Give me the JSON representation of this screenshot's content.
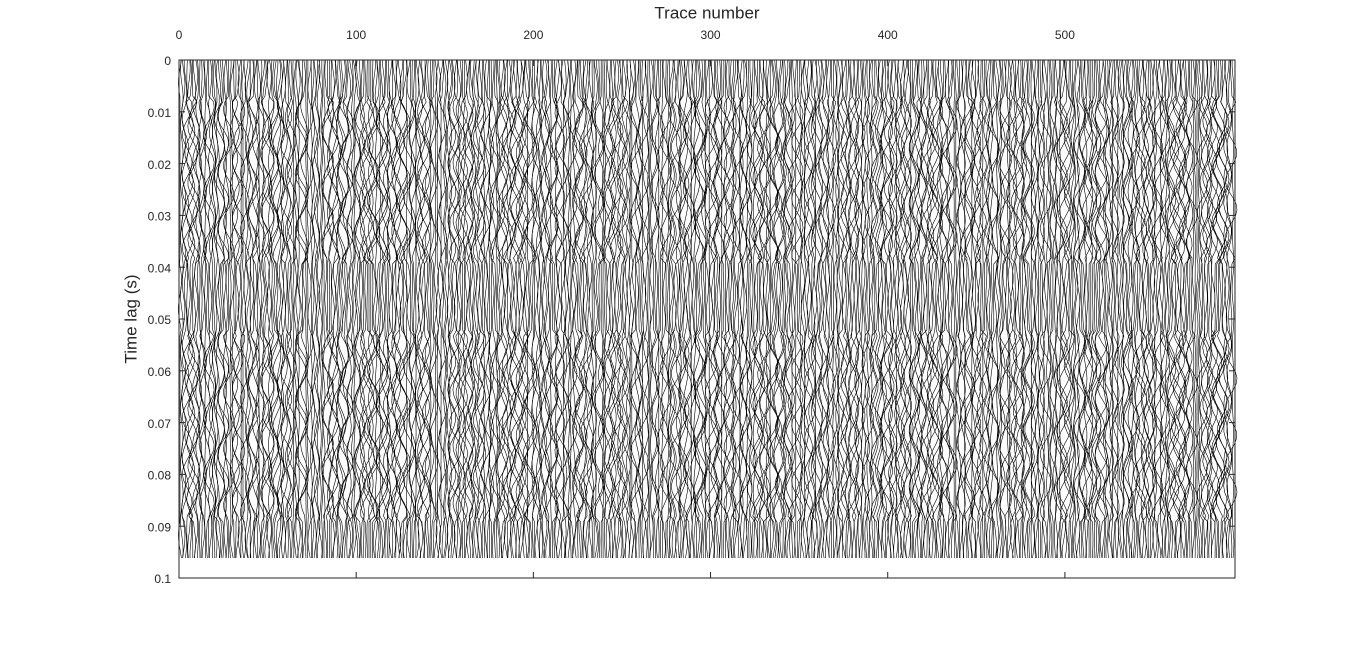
{
  "chart_data": {
    "type": "wiggle",
    "xlabel": "Trace number",
    "ylabel": "Time lag (s)",
    "xlim": [
      0,
      596
    ],
    "xticks": [
      0,
      100,
      200,
      300,
      400,
      500
    ],
    "ylim": [
      0,
      0.1
    ],
    "yticks": [
      0,
      0.01,
      0.02,
      0.03,
      0.04,
      0.05,
      0.06,
      0.07,
      0.08,
      0.09,
      0.1
    ],
    "y_reversed": true,
    "x_axis_top": true,
    "color": "#000000"
  }
}
